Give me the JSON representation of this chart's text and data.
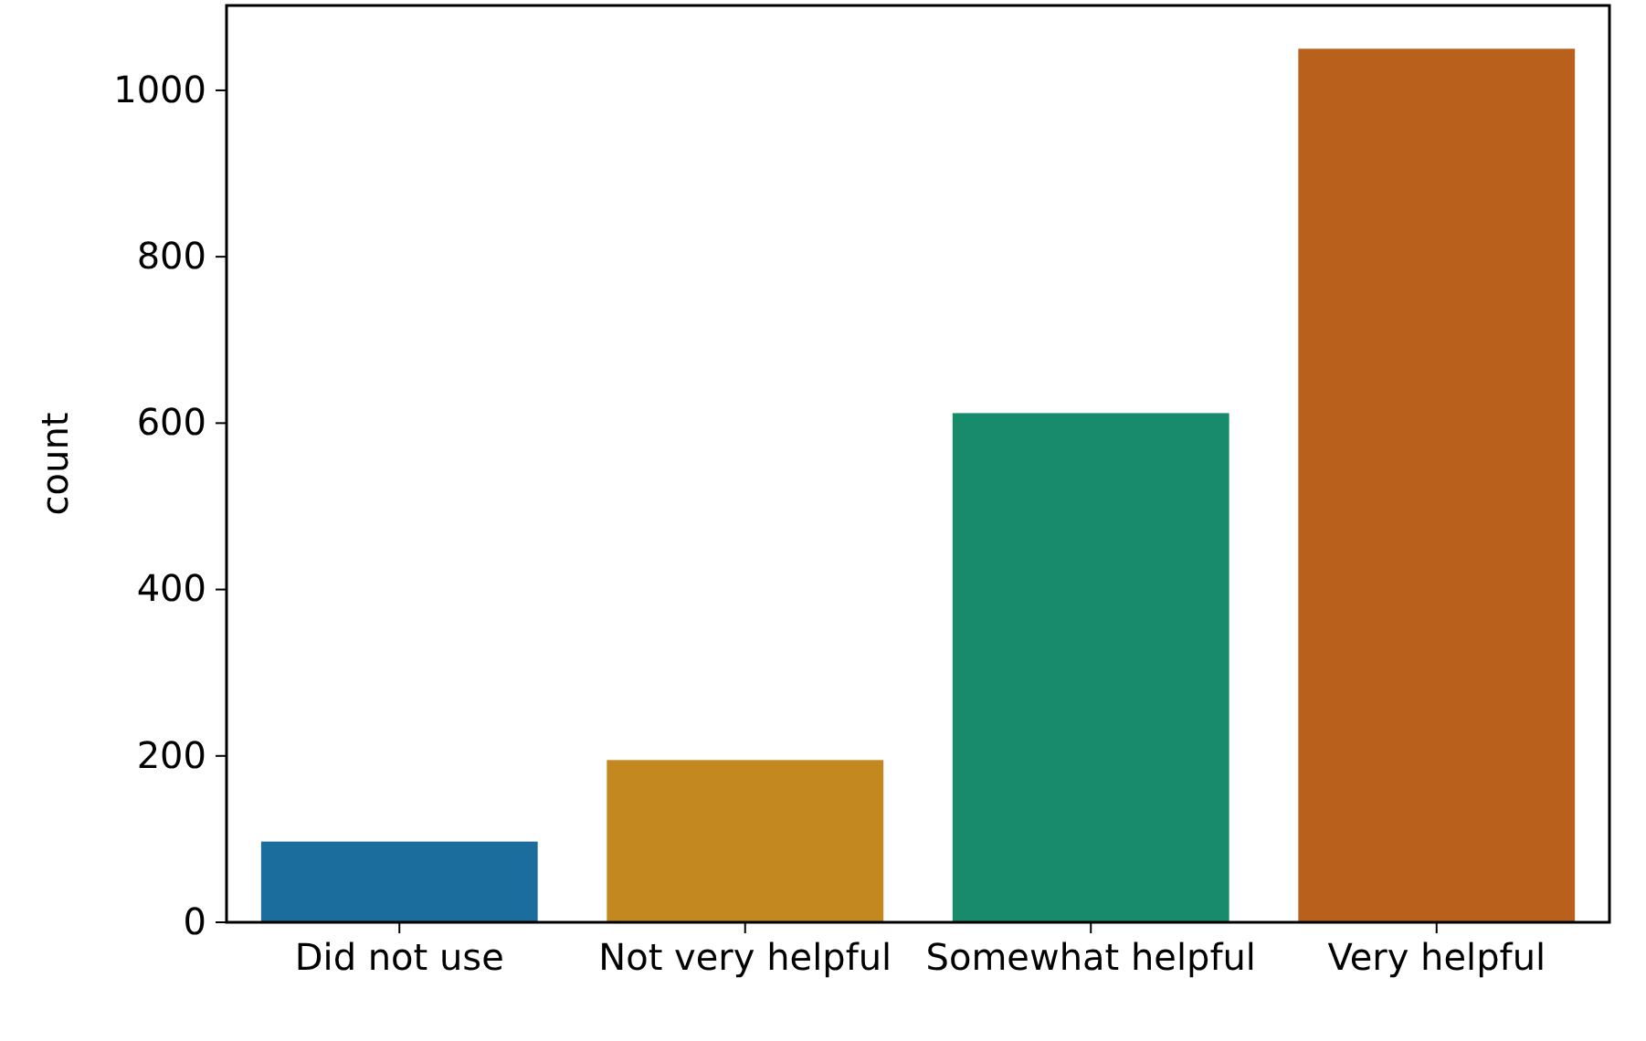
{
  "chart_data": {
    "type": "bar",
    "ylabel": "count",
    "categories": [
      "Did not use",
      "Not very helpful",
      "Somewhat helpful",
      "Very helpful"
    ],
    "values": [
      97,
      195,
      612,
      1050
    ],
    "colors": [
      "#1a6d9c",
      "#c38820",
      "#178b6b",
      "#b9601d"
    ],
    "ylim": [
      0,
      1102
    ],
    "yticks": [
      0,
      200,
      400,
      600,
      800,
      1000
    ],
    "grid": false
  }
}
